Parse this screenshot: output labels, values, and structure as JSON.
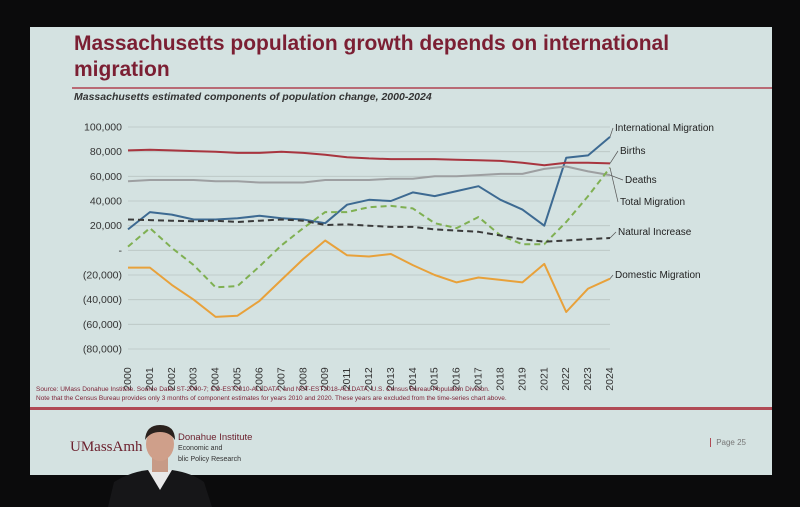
{
  "slide": {
    "title": "Massachusetts population growth depends on international migration",
    "subtitle": "Massachusetts estimated components of population change, 2000-2024",
    "source_line1": "Source: UMass Donahue Institute. Source Data: ST-2000-7; CO-EST2010-ALLDATA; and NST-EST2018-ALLDATA, U.S. Census Bureau Population Division.",
    "source_line2": "Note that the Census Bureau provides only 3 months of component estimates for years 2010 and 2020. These years are excluded from the time-series chart above.",
    "logo": "UMassAmh",
    "institute": "Donahue Institute",
    "institute_sub1": "Economic and",
    "institute_sub2": "blic Policy Research",
    "page": "Page 25"
  },
  "chart_data": {
    "type": "line",
    "x": [
      "2000",
      "2001",
      "2002",
      "2003",
      "2004",
      "2005",
      "2006",
      "2007",
      "2008",
      "2009",
      "2011",
      "2012",
      "2013",
      "2014",
      "2015",
      "2016",
      "2017",
      "2018",
      "2019",
      "2021",
      "2022",
      "2023",
      "2024"
    ],
    "ylim": [
      -80000,
      100000
    ],
    "yticks": [
      {
        "value": 100000,
        "label": "100,000"
      },
      {
        "value": 80000,
        "label": "80,000"
      },
      {
        "value": 60000,
        "label": "60,000"
      },
      {
        "value": 40000,
        "label": "40,000"
      },
      {
        "value": 20000,
        "label": "20,000"
      },
      {
        "value": 0,
        "label": "-"
      },
      {
        "value": -20000,
        "label": "(20,000)"
      },
      {
        "value": -40000,
        "label": "(40,000)"
      },
      {
        "value": -60000,
        "label": "(60,000)"
      },
      {
        "value": -80000,
        "label": "(80,000)"
      }
    ],
    "grid": true,
    "legend": "right",
    "series": [
      {
        "name": "International Migration",
        "color": "#3d6a92",
        "dash": "none",
        "values": [
          17000,
          31000,
          29000,
          25000,
          25000,
          26000,
          28000,
          26000,
          25000,
          22000,
          37000,
          41000,
          40000,
          47000,
          44000,
          48000,
          52000,
          41000,
          33000,
          20000,
          75000,
          77000,
          92000
        ]
      },
      {
        "name": "Births",
        "color": "#a8353f",
        "dash": "none",
        "values": [
          81000,
          81500,
          81000,
          80500,
          80000,
          79000,
          79000,
          80000,
          79000,
          77500,
          75500,
          74500,
          74000,
          74000,
          74000,
          73500,
          73000,
          72500,
          71000,
          69000,
          71000,
          71000,
          70500
        ]
      },
      {
        "name": "Deaths",
        "color": "#9d9fa1",
        "dash": "none",
        "values": [
          56000,
          57000,
          57000,
          57000,
          56000,
          56000,
          55000,
          55000,
          55000,
          57000,
          57000,
          57000,
          58000,
          58000,
          60000,
          60000,
          61000,
          62000,
          62000,
          66000,
          68000,
          64000,
          61000
        ]
      },
      {
        "name": "Total Migration",
        "color": "#7fb052",
        "dash": "6,4",
        "values": [
          3000,
          18000,
          2000,
          -12000,
          -30000,
          -29000,
          -13000,
          4000,
          18000,
          31000,
          31000,
          35000,
          36000,
          34000,
          22000,
          18000,
          27000,
          12000,
          5000,
          5000,
          23000,
          44000,
          67000
        ]
      },
      {
        "name": "Natural Increase",
        "color": "#3a3a3a",
        "dash": "6,4",
        "values": [
          25000,
          24500,
          24000,
          23500,
          24000,
          23000,
          24000,
          25000,
          24000,
          20500,
          21000,
          20000,
          19000,
          19000,
          17000,
          16000,
          15000,
          12000,
          9000,
          7000,
          8000,
          9000,
          10000
        ]
      },
      {
        "name": "Domestic Migration",
        "color": "#e8a13a",
        "dash": "none",
        "values": [
          -14000,
          -14000,
          -28000,
          -40000,
          -54000,
          -53000,
          -41000,
          -24000,
          -7000,
          8000,
          -4000,
          -5000,
          -3000,
          -12000,
          -20000,
          -26000,
          -22000,
          -24000,
          -26000,
          -11000,
          -50000,
          -31000,
          -23000
        ]
      }
    ]
  }
}
